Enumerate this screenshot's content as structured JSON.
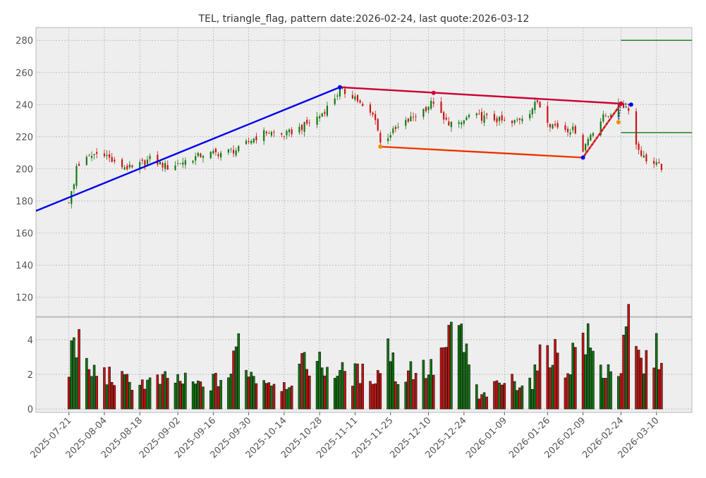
{
  "chart_data": {
    "type": "candlestick",
    "title": "TEL, triangle_flag, pattern date:2026-02-24, last quote:2026-03-12",
    "x_range": [
      "2025-07-08",
      "2026-03-24"
    ],
    "price_panel": {
      "ylim": [
        108,
        288
      ],
      "yticks": [
        120,
        140,
        160,
        180,
        200,
        220,
        240,
        260,
        280
      ],
      "grid": true
    },
    "volume_panel": {
      "ylim": [
        -0.2,
        5.3
      ],
      "yticks": [
        0,
        2,
        4
      ],
      "grid": true
    },
    "xticks": [
      "2025-07-21",
      "2025-08-04",
      "2025-08-18",
      "2025-09-02",
      "2025-09-16",
      "2025-09-30",
      "2025-10-14",
      "2025-10-28",
      "2025-11-11",
      "2025-11-25",
      "2025-12-10",
      "2025-12-24",
      "2026-01-09",
      "2026-01-26",
      "2026-02-09",
      "2026-02-24",
      "2026-03-10"
    ],
    "colors": {
      "up": "#117711",
      "down": "#cc1111",
      "pole_line": "#0000ee",
      "upper_line": "#cc0033",
      "lower_line": "#ff6600",
      "target_line": "#117711",
      "background": "#eeeeee"
    },
    "pattern": {
      "pole": [
        [
          "2025-07-08",
          173.8
        ],
        [
          "2025-11-05",
          250.8
        ]
      ],
      "upper": [
        [
          "2025-11-05",
          250.8
        ],
        [
          "2026-02-24",
          240.6
        ]
      ],
      "lower": [
        [
          "2025-11-21",
          213.8
        ],
        [
          "2026-02-09",
          207.0
        ]
      ],
      "breakout": [
        [
          "2026-02-09",
          207.0
        ],
        [
          "2026-02-24",
          240.6
        ]
      ],
      "breakout_link": [
        [
          "2026-02-23",
          229.0
        ],
        [
          "2026-02-24",
          240.6
        ],
        [
          "2026-02-28",
          240.0
        ]
      ],
      "points": [
        {
          "date": "2025-11-05",
          "price": 250.8,
          "color": "#0000ee"
        },
        {
          "date": "2025-12-12",
          "price": 247.3,
          "color": "#cc0033"
        },
        {
          "date": "2025-11-21",
          "price": 213.8,
          "color": "#ff8800"
        },
        {
          "date": "2026-02-09",
          "price": 207.0,
          "color": "#0000ee"
        },
        {
          "date": "2026-02-24",
          "price": 240.6,
          "color": "#cc0033"
        },
        {
          "date": "2026-02-23",
          "price": 229.0,
          "color": "#ff8800"
        },
        {
          "date": "2026-02-28",
          "price": 240.0,
          "color": "#0000ee"
        }
      ],
      "targets": [
        {
          "from": "2026-02-24",
          "to": "2026-03-24",
          "price": 280
        },
        {
          "from": "2026-02-24",
          "to": "2026-03-24",
          "price": 222.5
        }
      ]
    },
    "price_anchors": [
      [
        "2025-07-21",
        180
      ],
      [
        "2025-07-23",
        190
      ],
      [
        "2025-07-24",
        202
      ],
      [
        "2025-07-28",
        206
      ],
      [
        "2025-07-31",
        209
      ],
      [
        "2025-08-04",
        210
      ],
      [
        "2025-08-08",
        203
      ],
      [
        "2025-08-15",
        200
      ],
      [
        "2025-08-22",
        206
      ],
      [
        "2025-08-29",
        201
      ],
      [
        "2025-09-05",
        205
      ],
      [
        "2025-09-12",
        209
      ],
      [
        "2025-09-19",
        210
      ],
      [
        "2025-09-26",
        212
      ],
      [
        "2025-10-01",
        218
      ],
      [
        "2025-10-07",
        223
      ],
      [
        "2025-10-14",
        221
      ],
      [
        "2025-10-21",
        226
      ],
      [
        "2025-10-28",
        233
      ],
      [
        "2025-11-01",
        240
      ],
      [
        "2025-11-05",
        249
      ],
      [
        "2025-11-11",
        245
      ],
      [
        "2025-11-14",
        238
      ],
      [
        "2025-11-19",
        232
      ],
      [
        "2025-11-21",
        216
      ],
      [
        "2025-11-25",
        222
      ],
      [
        "2025-12-02",
        230
      ],
      [
        "2025-12-09",
        238
      ],
      [
        "2025-12-12",
        242
      ],
      [
        "2025-12-16",
        230
      ],
      [
        "2025-12-22",
        227
      ],
      [
        "2025-12-26",
        233
      ],
      [
        "2026-01-05",
        231
      ],
      [
        "2026-01-12",
        228
      ],
      [
        "2026-01-19",
        236
      ],
      [
        "2026-01-22",
        242
      ],
      [
        "2026-01-27",
        228
      ],
      [
        "2026-02-02",
        225
      ],
      [
        "2026-02-06",
        224
      ],
      [
        "2026-02-09",
        212
      ],
      [
        "2026-02-12",
        222
      ],
      [
        "2026-02-17",
        232
      ],
      [
        "2026-02-20",
        235
      ],
      [
        "2026-02-24",
        240
      ],
      [
        "2026-02-27",
        238
      ],
      [
        "2026-03-02",
        215
      ],
      [
        "2026-03-05",
        207
      ],
      [
        "2026-03-09",
        203
      ],
      [
        "2026-03-12",
        201
      ]
    ],
    "volume_anchors": [
      [
        "2025-07-21",
        2.0
      ],
      [
        "2025-07-23",
        4.8
      ],
      [
        "2025-07-28",
        2.2
      ],
      [
        "2025-08-04",
        2.0
      ],
      [
        "2025-08-12",
        1.6
      ],
      [
        "2025-08-20",
        1.5
      ],
      [
        "2025-09-01",
        1.7
      ],
      [
        "2025-09-12",
        1.3
      ],
      [
        "2025-09-23",
        2.0
      ],
      [
        "2025-09-26",
        4.0
      ],
      [
        "2025-10-01",
        2.0
      ],
      [
        "2025-10-14",
        1.4
      ],
      [
        "2025-10-24",
        2.8
      ],
      [
        "2025-10-31",
        2.4
      ],
      [
        "2025-11-07",
        2.0
      ],
      [
        "2025-11-20",
        2.0
      ],
      [
        "2025-11-24",
        3.9
      ],
      [
        "2025-11-28",
        1.5
      ],
      [
        "2025-12-03",
        2.4
      ],
      [
        "2025-12-11",
        2.2
      ],
      [
        "2025-12-22",
        4.7
      ],
      [
        "2025-12-30",
        0.6
      ],
      [
        "2026-01-09",
        1.6
      ],
      [
        "2026-01-20",
        1.6
      ],
      [
        "2026-01-26",
        3.9
      ],
      [
        "2026-02-02",
        2.2
      ],
      [
        "2026-02-09",
        4.4
      ],
      [
        "2026-02-16",
        2.2
      ],
      [
        "2026-02-24",
        2.4
      ],
      [
        "2026-02-27",
        4.8
      ],
      [
        "2026-03-04",
        2.5
      ],
      [
        "2026-03-12",
        3.5
      ]
    ]
  }
}
